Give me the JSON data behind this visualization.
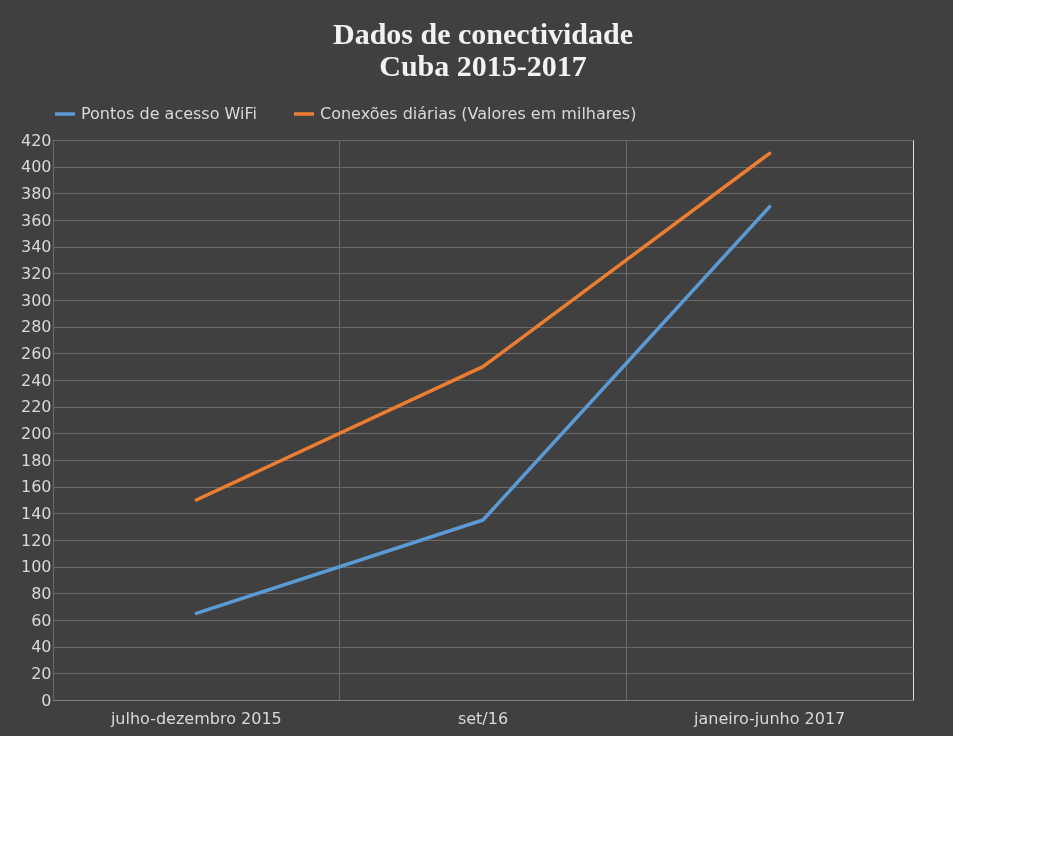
{
  "chart_data": {
    "type": "line",
    "title": [
      "Dados de conectividade",
      "Cuba 2015-2017"
    ],
    "categories": [
      "julho-dezembro 2015",
      "set/16",
      "janeiro-junho 2017"
    ],
    "series": [
      {
        "name": "Pontos de acesso WiFi",
        "color": "#5b9bd5",
        "values": [
          65,
          135,
          370
        ]
      },
      {
        "name": "Conexões diárias (Valores em milhares)",
        "color": "#ed7d31",
        "values": [
          150,
          250,
          410
        ]
      }
    ],
    "ylim": [
      0,
      420
    ],
    "yticks": [
      0,
      20,
      40,
      60,
      80,
      100,
      120,
      140,
      160,
      180,
      200,
      220,
      240,
      260,
      280,
      300,
      320,
      340,
      360,
      380,
      400,
      420
    ],
    "grid": true,
    "legend": "top",
    "marker": "none",
    "line_style": "solid"
  }
}
